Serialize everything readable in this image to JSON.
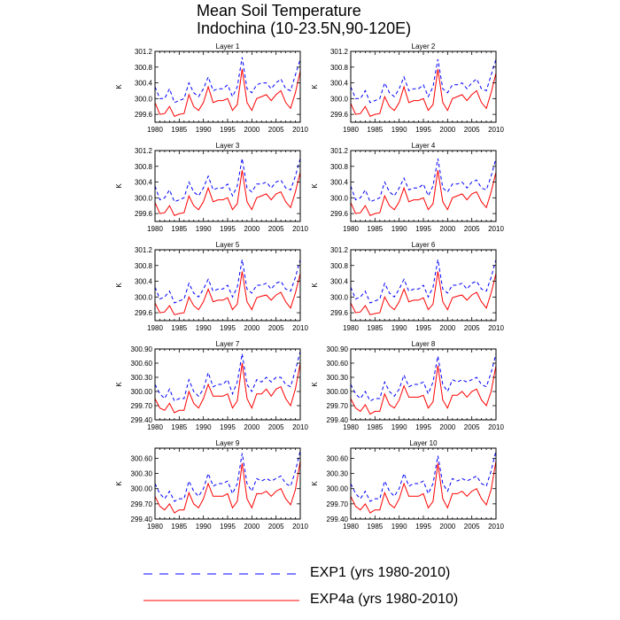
{
  "figure": {
    "title_line1": "Mean Soil Temperature",
    "title_line2": "Indochina (10-23.5N,90-120E)",
    "legend": [
      {
        "label": "EXP1 (yrs 1980-2010)",
        "color": "#0000ff",
        "dash": "dashed"
      },
      {
        "label": "EXP4a (yrs 1980-2010)",
        "color": "#ff0000",
        "dash": "solid"
      }
    ]
  },
  "chart_data": {
    "type": "line",
    "x": [
      1980,
      1981,
      1982,
      1983,
      1984,
      1985,
      1986,
      1987,
      1988,
      1989,
      1990,
      1991,
      1992,
      1993,
      1994,
      1995,
      1996,
      1997,
      1998,
      1999,
      2000,
      2001,
      2002,
      2003,
      2004,
      2005,
      2006,
      2007,
      2008,
      2009,
      2010
    ],
    "x_ticks": [
      1980,
      1985,
      1990,
      1995,
      2000,
      2005,
      2010
    ],
    "ylabel": "K",
    "panels": [
      {
        "title": "Layer 1",
        "ylim": [
          299.4,
          301.2
        ],
        "yticks": [
          299.6,
          300.0,
          300.4,
          300.8,
          301.2
        ],
        "tick_dec": 1,
        "series": [
          {
            "values": [
              300.3,
              300.0,
              300.0,
              300.25,
              299.9,
              299.95,
              300.0,
              300.4,
              300.15,
              300.05,
              300.25,
              300.55,
              300.2,
              300.25,
              300.25,
              300.35,
              300.05,
              300.3,
              301.05,
              300.25,
              300.15,
              300.35,
              300.4,
              300.4,
              300.25,
              300.4,
              300.5,
              300.25,
              300.2,
              300.6,
              301.0
            ]
          },
          {
            "values": [
              299.9,
              299.6,
              299.62,
              299.8,
              299.55,
              299.6,
              299.62,
              300.1,
              299.8,
              299.7,
              299.9,
              300.3,
              299.9,
              299.95,
              299.95,
              300.0,
              299.7,
              299.85,
              300.75,
              299.9,
              299.7,
              300.0,
              300.05,
              300.1,
              299.95,
              300.1,
              300.2,
              299.9,
              299.75,
              300.15,
              300.7
            ]
          }
        ]
      },
      {
        "title": "Layer 2",
        "ylim": [
          299.4,
          301.2
        ],
        "yticks": [
          299.6,
          300.0,
          300.4,
          300.8,
          301.2
        ],
        "tick_dec": 1,
        "series": [
          {
            "values": [
              300.3,
              300.0,
              300.0,
              300.2,
              299.9,
              299.95,
              300.0,
              300.4,
              300.15,
              300.05,
              300.25,
              300.55,
              300.2,
              300.25,
              300.25,
              300.35,
              300.05,
              300.3,
              301.0,
              300.25,
              300.15,
              300.35,
              300.35,
              300.4,
              300.25,
              300.4,
              300.5,
              300.25,
              300.2,
              300.6,
              301.0
            ]
          },
          {
            "values": [
              299.88,
              299.6,
              299.62,
              299.8,
              299.55,
              299.6,
              299.62,
              300.05,
              299.8,
              299.7,
              299.9,
              300.3,
              299.9,
              299.95,
              299.95,
              300.0,
              299.7,
              299.85,
              300.75,
              299.9,
              299.7,
              300.0,
              300.05,
              300.1,
              299.95,
              300.1,
              300.2,
              299.9,
              299.75,
              300.15,
              300.65
            ]
          }
        ]
      },
      {
        "title": "Layer 3",
        "ylim": [
          299.4,
          301.2
        ],
        "yticks": [
          299.6,
          300.0,
          300.4,
          300.8,
          301.2
        ],
        "tick_dec": 1,
        "series": [
          {
            "values": [
              300.3,
              299.95,
              300.0,
              300.2,
              299.9,
              299.95,
              300.0,
              300.4,
              300.15,
              300.05,
              300.25,
              300.55,
              300.2,
              300.25,
              300.25,
              300.35,
              300.05,
              300.3,
              301.0,
              300.25,
              300.15,
              300.35,
              300.35,
              300.4,
              300.25,
              300.4,
              300.45,
              300.25,
              300.2,
              300.55,
              301.0
            ]
          },
          {
            "values": [
              299.88,
              299.6,
              299.62,
              299.8,
              299.55,
              299.6,
              299.62,
              300.05,
              299.8,
              299.7,
              299.9,
              300.25,
              299.9,
              299.95,
              299.95,
              300.0,
              299.7,
              299.85,
              300.7,
              299.9,
              299.7,
              300.0,
              300.05,
              300.1,
              299.95,
              300.1,
              300.15,
              299.9,
              299.75,
              300.15,
              300.65
            ]
          }
        ]
      },
      {
        "title": "Layer 4",
        "ylim": [
          299.4,
          301.2
        ],
        "yticks": [
          299.6,
          300.0,
          300.4,
          300.8,
          301.2
        ],
        "tick_dec": 1,
        "series": [
          {
            "values": [
              300.3,
              299.95,
              300.0,
              300.2,
              299.9,
              299.95,
              300.0,
              300.4,
              300.15,
              300.05,
              300.25,
              300.5,
              300.2,
              300.25,
              300.25,
              300.35,
              300.05,
              300.3,
              301.0,
              300.25,
              300.15,
              300.35,
              300.35,
              300.4,
              300.25,
              300.4,
              300.45,
              300.25,
              300.2,
              300.55,
              301.0
            ]
          },
          {
            "values": [
              299.88,
              299.6,
              299.62,
              299.8,
              299.55,
              299.6,
              299.62,
              300.05,
              299.8,
              299.7,
              299.9,
              300.25,
              299.9,
              299.95,
              299.95,
              300.0,
              299.7,
              299.85,
              300.7,
              299.9,
              299.7,
              300.0,
              300.05,
              300.1,
              299.95,
              300.1,
              300.15,
              299.9,
              299.75,
              300.15,
              300.65
            ]
          }
        ]
      },
      {
        "title": "Layer 5",
        "ylim": [
          299.4,
          301.2
        ],
        "yticks": [
          299.6,
          300.0,
          300.4,
          300.8,
          301.2
        ],
        "tick_dec": 1,
        "series": [
          {
            "values": [
              300.25,
              299.95,
              300.0,
              300.15,
              299.85,
              299.9,
              299.95,
              300.35,
              300.1,
              300.0,
              300.2,
              300.45,
              300.15,
              300.2,
              300.2,
              300.3,
              300.0,
              300.25,
              300.95,
              300.2,
              300.1,
              300.3,
              300.3,
              300.35,
              300.2,
              300.35,
              300.4,
              300.2,
              300.15,
              300.5,
              300.95
            ]
          },
          {
            "values": [
              299.85,
              299.6,
              299.62,
              299.78,
              299.55,
              299.58,
              299.6,
              300.0,
              299.78,
              299.68,
              299.88,
              300.2,
              299.88,
              299.92,
              299.92,
              299.98,
              299.68,
              299.82,
              300.65,
              299.88,
              299.68,
              299.98,
              300.02,
              300.05,
              299.92,
              300.05,
              300.12,
              299.88,
              299.72,
              300.1,
              300.6
            ]
          }
        ]
      },
      {
        "title": "Layer 6",
        "ylim": [
          299.4,
          301.2
        ],
        "yticks": [
          299.6,
          300.0,
          300.4,
          300.8,
          301.2
        ],
        "tick_dec": 1,
        "series": [
          {
            "values": [
              300.25,
              299.95,
              300.0,
              300.15,
              299.85,
              299.9,
              299.95,
              300.35,
              300.1,
              300.0,
              300.2,
              300.45,
              300.15,
              300.2,
              300.2,
              300.3,
              300.0,
              300.25,
              300.95,
              300.2,
              300.1,
              300.3,
              300.3,
              300.35,
              300.2,
              300.35,
              300.4,
              300.2,
              300.15,
              300.5,
              300.95
            ]
          },
          {
            "values": [
              299.85,
              299.6,
              299.62,
              299.78,
              299.55,
              299.58,
              299.6,
              300.0,
              299.78,
              299.68,
              299.88,
              300.2,
              299.88,
              299.92,
              299.92,
              299.98,
              299.68,
              299.82,
              300.65,
              299.88,
              299.68,
              299.98,
              300.02,
              300.05,
              299.92,
              300.05,
              300.12,
              299.88,
              299.72,
              300.1,
              300.6
            ]
          }
        ]
      },
      {
        "title": "Layer 7",
        "ylim": [
          299.4,
          300.9
        ],
        "yticks": [
          299.4,
          299.7,
          300.0,
          300.3,
          300.6,
          300.9
        ],
        "tick_dec": 2,
        "series": [
          {
            "values": [
              300.15,
              299.95,
              299.85,
              300.05,
              299.8,
              299.85,
              299.85,
              300.25,
              300.0,
              299.9,
              300.05,
              300.4,
              300.1,
              300.15,
              300.15,
              300.25,
              299.95,
              300.2,
              300.8,
              300.15,
              300.0,
              300.25,
              300.2,
              300.3,
              300.2,
              300.3,
              300.3,
              300.15,
              300.1,
              300.45,
              300.85
            ]
          },
          {
            "values": [
              299.85,
              299.65,
              299.6,
              299.75,
              299.55,
              299.6,
              299.6,
              300.0,
              299.75,
              299.65,
              299.85,
              300.15,
              299.9,
              299.9,
              299.9,
              299.95,
              299.65,
              299.8,
              300.6,
              299.85,
              299.65,
              299.95,
              299.95,
              300.05,
              299.9,
              300.05,
              300.1,
              299.85,
              299.7,
              300.05,
              300.6
            ]
          }
        ]
      },
      {
        "title": "Layer 8",
        "ylim": [
          299.4,
          300.9
        ],
        "yticks": [
          299.4,
          299.7,
          300.0,
          300.3,
          300.6,
          300.9
        ],
        "tick_dec": 2,
        "series": [
          {
            "values": [
              300.15,
              299.95,
              299.85,
              300.0,
              299.8,
              299.85,
              299.85,
              300.2,
              300.0,
              299.9,
              300.05,
              300.35,
              300.1,
              300.15,
              300.15,
              300.2,
              299.95,
              300.2,
              300.75,
              300.15,
              300.0,
              300.25,
              300.2,
              300.25,
              300.2,
              300.25,
              300.3,
              300.15,
              300.1,
              300.4,
              300.8
            ]
          },
          {
            "values": [
              299.85,
              299.65,
              299.58,
              299.72,
              299.52,
              299.58,
              299.58,
              299.95,
              299.72,
              299.65,
              299.82,
              300.12,
              299.88,
              299.88,
              299.88,
              299.92,
              299.65,
              299.78,
              300.55,
              299.82,
              299.65,
              299.92,
              299.92,
              300.0,
              299.88,
              300.0,
              300.05,
              299.82,
              299.7,
              300.0,
              300.55
            ]
          }
        ]
      },
      {
        "title": "Layer 9",
        "ylim": [
          299.4,
          300.8
        ],
        "yticks": [
          299.4,
          299.7,
          300.0,
          300.3,
          300.6
        ],
        "tick_dec": 2,
        "series": [
          {
            "values": [
              300.1,
              299.9,
              299.8,
              299.95,
              299.75,
              299.8,
              299.8,
              300.15,
              299.95,
              299.85,
              300.0,
              300.3,
              300.05,
              300.1,
              300.1,
              300.15,
              299.9,
              300.1,
              300.7,
              300.1,
              299.95,
              300.2,
              300.15,
              300.2,
              300.15,
              300.2,
              300.25,
              300.1,
              300.05,
              300.35,
              300.75
            ]
          },
          {
            "values": [
              299.85,
              299.65,
              299.58,
              299.7,
              299.52,
              299.58,
              299.58,
              299.92,
              299.7,
              299.62,
              299.8,
              300.1,
              299.85,
              299.85,
              299.85,
              299.9,
              299.62,
              299.75,
              300.5,
              299.8,
              299.62,
              299.9,
              299.9,
              299.95,
              299.85,
              299.95,
              300.0,
              299.8,
              299.68,
              299.98,
              300.55
            ]
          }
        ]
      },
      {
        "title": "Layer 10",
        "ylim": [
          299.4,
          300.8
        ],
        "yticks": [
          299.4,
          299.7,
          300.0,
          300.3,
          300.6
        ],
        "tick_dec": 2,
        "series": [
          {
            "values": [
              300.1,
              299.9,
              299.8,
              299.95,
              299.75,
              299.8,
              299.8,
              300.15,
              299.95,
              299.85,
              300.0,
              300.3,
              300.05,
              300.1,
              300.1,
              300.15,
              299.9,
              300.1,
              300.65,
              300.1,
              299.95,
              300.2,
              300.15,
              300.2,
              300.15,
              300.2,
              300.25,
              300.1,
              300.05,
              300.35,
              300.75
            ]
          },
          {
            "values": [
              299.85,
              299.65,
              299.58,
              299.7,
              299.52,
              299.58,
              299.58,
              299.92,
              299.7,
              299.62,
              299.8,
              300.1,
              299.85,
              299.85,
              299.85,
              299.9,
              299.62,
              299.75,
              300.5,
              299.8,
              299.62,
              299.9,
              299.9,
              299.95,
              299.85,
              299.95,
              300.0,
              299.8,
              299.68,
              299.98,
              300.55
            ]
          }
        ]
      }
    ]
  }
}
